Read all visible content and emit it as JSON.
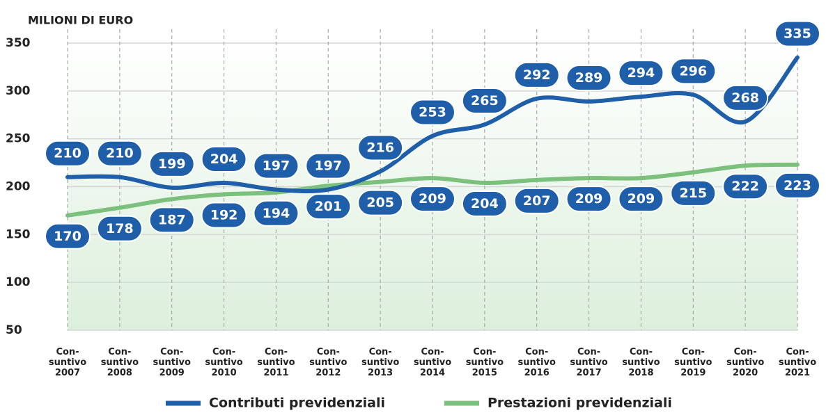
{
  "chart_data": {
    "type": "line",
    "y_axis_label": "MILIONI DI EURO",
    "categories": [
      "Con-\nsuntivo\n2007",
      "Con-\nsuntivo\n2008",
      "Con-\nsuntivo\n2009",
      "Con-\nsuntivo\n2010",
      "Con-\nsuntivo\n2011",
      "Con-\nsuntivo\n2012",
      "Con-\nsuntivo\n2013",
      "Con-\nsuntivo\n2014",
      "Con-\nsuntivo\n2015",
      "Con-\nsuntivo\n2016",
      "Con-\nsuntivo\n2017",
      "Con-\nsuntivo\n2018",
      "Con-\nsuntivo\n2019",
      "Con-\nsuntivo\n2020",
      "Con-\nsuntivo\n2021"
    ],
    "series": [
      {
        "name": "Contributi previdenziali",
        "color": "#1f5ea8",
        "label_position": "above",
        "values": [
          210,
          210,
          199,
          204,
          197,
          197,
          216,
          253,
          265,
          292,
          289,
          294,
          296,
          268,
          335
        ]
      },
      {
        "name": "Prestazioni previdenziali",
        "color": "#7cc07e",
        "label_position": "below",
        "values": [
          170,
          178,
          187,
          192,
          194,
          201,
          205,
          209,
          204,
          207,
          209,
          209,
          215,
          222,
          223
        ]
      }
    ],
    "ylim": [
      50,
      350
    ],
    "yticks": [
      50,
      100,
      150,
      200,
      250,
      300,
      350
    ],
    "grid": true,
    "legend": "bottom"
  }
}
